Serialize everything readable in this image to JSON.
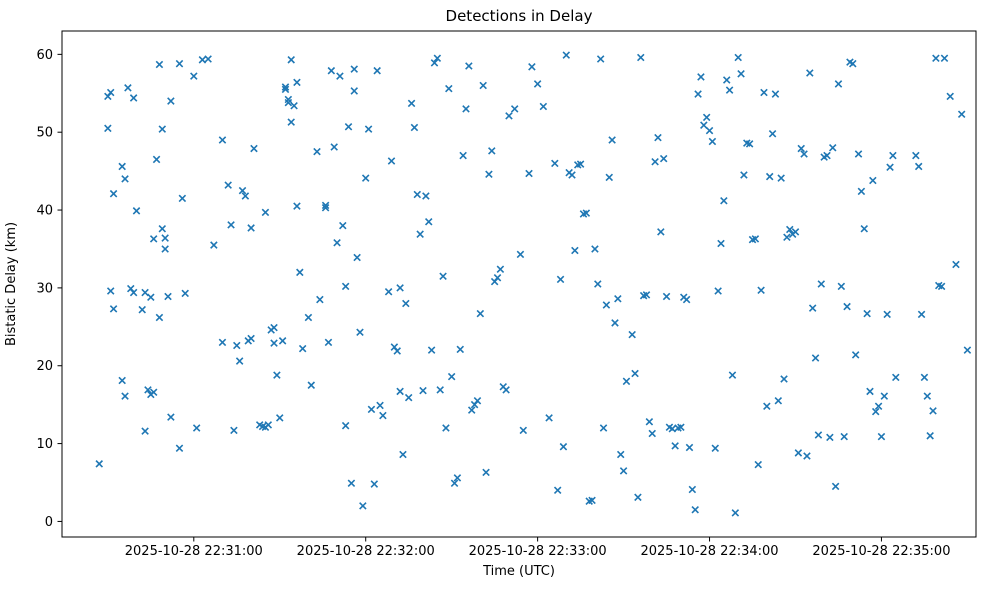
{
  "figure": {
    "title": "Detections in Delay"
  },
  "chart_data": {
    "type": "scatter",
    "title": "Detections in Delay",
    "xlabel": "Time (UTC)",
    "ylabel": "Bistatic Delay (km)",
    "marker": "x",
    "marker_color": "#1f77b4",
    "grid": false,
    "legend": "none",
    "x_unit": "seconds after 2025-10-28 22:30:00 UTC",
    "xlim": [
      14,
      333
    ],
    "ylim": [
      -2,
      63
    ],
    "x_ticks": [
      {
        "value": 60,
        "label": "2025-10-28 22:31:00"
      },
      {
        "value": 120,
        "label": "2025-10-28 22:32:00"
      },
      {
        "value": 180,
        "label": "2025-10-28 22:33:00"
      },
      {
        "value": 240,
        "label": "2025-10-28 22:34:00"
      },
      {
        "value": 300,
        "label": "2025-10-28 22:35:00"
      }
    ],
    "y_ticks": [
      0,
      10,
      20,
      30,
      40,
      50,
      60
    ],
    "points": [
      [
        27,
        7.4
      ],
      [
        30,
        50.5
      ],
      [
        30,
        54.6
      ],
      [
        31,
        55.1
      ],
      [
        32,
        42.1
      ],
      [
        31,
        29.6
      ],
      [
        32,
        27.3
      ],
      [
        35,
        18.1
      ],
      [
        36,
        16.1
      ],
      [
        35,
        45.6
      ],
      [
        36,
        44.0
      ],
      [
        37,
        55.7
      ],
      [
        39,
        54.4
      ],
      [
        38,
        29.9
      ],
      [
        39,
        29.4
      ],
      [
        40,
        39.9
      ],
      [
        42,
        27.2
      ],
      [
        43,
        29.4
      ],
      [
        43,
        11.6
      ],
      [
        44,
        16.9
      ],
      [
        45,
        16.3
      ],
      [
        46,
        16.6
      ],
      [
        45,
        28.8
      ],
      [
        46,
        36.3
      ],
      [
        48,
        26.2
      ],
      [
        47,
        46.5
      ],
      [
        48,
        58.7
      ],
      [
        49,
        50.4
      ],
      [
        49,
        37.6
      ],
      [
        50,
        36.4
      ],
      [
        50,
        35.0
      ],
      [
        51,
        28.9
      ],
      [
        52,
        13.4
      ],
      [
        52,
        54.0
      ],
      [
        55,
        58.8
      ],
      [
        55,
        9.4
      ],
      [
        57,
        29.3
      ],
      [
        56,
        41.5
      ],
      [
        60,
        57.2
      ],
      [
        61,
        12.0
      ],
      [
        63,
        59.3
      ],
      [
        65,
        59.4
      ],
      [
        67,
        35.5
      ],
      [
        70,
        49.0
      ],
      [
        70,
        23.0
      ],
      [
        72,
        43.2
      ],
      [
        73,
        38.1
      ],
      [
        74,
        11.7
      ],
      [
        75,
        22.6
      ],
      [
        76,
        20.6
      ],
      [
        77,
        42.5
      ],
      [
        78,
        41.8
      ],
      [
        79,
        23.2
      ],
      [
        80,
        23.5
      ],
      [
        80,
        37.7
      ],
      [
        81,
        47.9
      ],
      [
        83,
        12.4
      ],
      [
        84,
        12.2
      ],
      [
        85,
        39.7
      ],
      [
        85,
        12.1
      ],
      [
        86,
        12.4
      ],
      [
        87,
        24.6
      ],
      [
        88,
        24.9
      ],
      [
        88,
        22.9
      ],
      [
        89,
        18.8
      ],
      [
        90,
        13.3
      ],
      [
        91,
        23.2
      ],
      [
        92,
        55.5
      ],
      [
        92,
        55.8
      ],
      [
        93,
        53.8
      ],
      [
        93,
        54.2
      ],
      [
        94,
        51.3
      ],
      [
        94,
        59.3
      ],
      [
        95,
        53.4
      ],
      [
        96,
        56.4
      ],
      [
        96,
        40.5
      ],
      [
        97,
        32.0
      ],
      [
        98,
        22.2
      ],
      [
        100,
        26.2
      ],
      [
        101,
        17.5
      ],
      [
        103,
        47.5
      ],
      [
        104,
        28.5
      ],
      [
        106,
        40.6
      ],
      [
        106,
        40.3
      ],
      [
        107,
        23.0
      ],
      [
        108,
        57.9
      ],
      [
        109,
        48.1
      ],
      [
        110,
        35.8
      ],
      [
        111,
        57.2
      ],
      [
        112,
        38.0
      ],
      [
        113,
        12.3
      ],
      [
        113,
        30.2
      ],
      [
        114,
        50.7
      ],
      [
        115,
        4.9
      ],
      [
        116,
        58.1
      ],
      [
        116,
        55.3
      ],
      [
        117,
        33.9
      ],
      [
        118,
        24.3
      ],
      [
        119,
        2.0
      ],
      [
        120,
        44.1
      ],
      [
        121,
        50.4
      ],
      [
        122,
        14.4
      ],
      [
        123,
        4.8
      ],
      [
        124,
        57.9
      ],
      [
        125,
        14.9
      ],
      [
        126,
        13.6
      ],
      [
        128,
        29.5
      ],
      [
        129,
        46.3
      ],
      [
        130,
        22.4
      ],
      [
        131,
        21.9
      ],
      [
        132,
        30.0
      ],
      [
        132,
        16.7
      ],
      [
        133,
        8.6
      ],
      [
        134,
        28.0
      ],
      [
        135,
        15.9
      ],
      [
        136,
        53.7
      ],
      [
        137,
        50.6
      ],
      [
        138,
        42.0
      ],
      [
        139,
        36.9
      ],
      [
        140,
        16.8
      ],
      [
        141,
        41.8
      ],
      [
        142,
        38.5
      ],
      [
        143,
        22.0
      ],
      [
        144,
        58.9
      ],
      [
        145,
        59.5
      ],
      [
        146,
        16.9
      ],
      [
        147,
        31.5
      ],
      [
        148,
        12.0
      ],
      [
        149,
        55.6
      ],
      [
        150,
        18.6
      ],
      [
        151,
        4.9
      ],
      [
        152,
        5.6
      ],
      [
        153,
        22.1
      ],
      [
        154,
        47.0
      ],
      [
        155,
        53.0
      ],
      [
        156,
        58.5
      ],
      [
        157,
        14.3
      ],
      [
        158,
        15.0
      ],
      [
        159,
        15.5
      ],
      [
        160,
        26.7
      ],
      [
        161,
        56.0
      ],
      [
        162,
        6.3
      ],
      [
        163,
        44.6
      ],
      [
        164,
        47.6
      ],
      [
        165,
        30.8
      ],
      [
        166,
        31.3
      ],
      [
        167,
        32.4
      ],
      [
        168,
        17.3
      ],
      [
        169,
        16.9
      ],
      [
        170,
        52.1
      ],
      [
        172,
        53.0
      ],
      [
        174,
        34.3
      ],
      [
        175,
        11.7
      ],
      [
        177,
        44.7
      ],
      [
        178,
        58.4
      ],
      [
        180,
        56.2
      ],
      [
        182,
        53.3
      ],
      [
        184,
        13.3
      ],
      [
        186,
        46.0
      ],
      [
        187,
        4.0
      ],
      [
        188,
        31.1
      ],
      [
        189,
        9.6
      ],
      [
        190,
        59.9
      ],
      [
        191,
        44.8
      ],
      [
        192,
        44.5
      ],
      [
        193,
        34.8
      ],
      [
        194,
        45.8
      ],
      [
        195,
        45.9
      ],
      [
        196,
        39.5
      ],
      [
        197,
        39.6
      ],
      [
        198,
        2.6
      ],
      [
        199,
        2.7
      ],
      [
        200,
        35.0
      ],
      [
        201,
        30.5
      ],
      [
        202,
        59.4
      ],
      [
        203,
        12.0
      ],
      [
        204,
        27.8
      ],
      [
        205,
        44.2
      ],
      [
        206,
        49.0
      ],
      [
        207,
        25.5
      ],
      [
        208,
        28.6
      ],
      [
        209,
        8.6
      ],
      [
        210,
        6.5
      ],
      [
        211,
        18.0
      ],
      [
        213,
        24.0
      ],
      [
        214,
        19.0
      ],
      [
        215,
        3.1
      ],
      [
        216,
        59.6
      ],
      [
        217,
        29.0
      ],
      [
        218,
        29.1
      ],
      [
        219,
        12.8
      ],
      [
        220,
        11.3
      ],
      [
        221,
        46.2
      ],
      [
        222,
        49.3
      ],
      [
        223,
        37.2
      ],
      [
        224,
        46.6
      ],
      [
        225,
        28.9
      ],
      [
        226,
        12.1
      ],
      [
        227,
        11.9
      ],
      [
        228,
        9.7
      ],
      [
        229,
        12.0
      ],
      [
        230,
        12.1
      ],
      [
        231,
        28.8
      ],
      [
        232,
        28.5
      ],
      [
        233,
        9.5
      ],
      [
        234,
        4.1
      ],
      [
        235,
        1.5
      ],
      [
        236,
        54.9
      ],
      [
        237,
        57.1
      ],
      [
        238,
        50.9
      ],
      [
        239,
        51.9
      ],
      [
        240,
        50.2
      ],
      [
        241,
        48.8
      ],
      [
        242,
        9.4
      ],
      [
        243,
        29.6
      ],
      [
        244,
        35.7
      ],
      [
        245,
        41.2
      ],
      [
        246,
        56.7
      ],
      [
        247,
        55.4
      ],
      [
        248,
        18.8
      ],
      [
        249,
        1.1
      ],
      [
        250,
        59.6
      ],
      [
        251,
        57.5
      ],
      [
        252,
        44.5
      ],
      [
        253,
        48.6
      ],
      [
        254,
        48.5
      ],
      [
        255,
        36.2
      ],
      [
        256,
        36.3
      ],
      [
        257,
        7.3
      ],
      [
        258,
        29.7
      ],
      [
        259,
        55.1
      ],
      [
        260,
        14.8
      ],
      [
        261,
        44.3
      ],
      [
        262,
        49.8
      ],
      [
        263,
        54.9
      ],
      [
        264,
        15.5
      ],
      [
        265,
        44.1
      ],
      [
        266,
        18.3
      ],
      [
        267,
        36.5
      ],
      [
        268,
        37.5
      ],
      [
        269,
        36.9
      ],
      [
        270,
        37.2
      ],
      [
        271,
        8.8
      ],
      [
        272,
        47.9
      ],
      [
        273,
        47.2
      ],
      [
        274,
        8.4
      ],
      [
        275,
        57.6
      ],
      [
        276,
        27.4
      ],
      [
        277,
        21.0
      ],
      [
        278,
        11.1
      ],
      [
        279,
        30.5
      ],
      [
        280,
        46.8
      ],
      [
        281,
        47.0
      ],
      [
        282,
        10.8
      ],
      [
        283,
        48.0
      ],
      [
        284,
        4.5
      ],
      [
        285,
        56.2
      ],
      [
        286,
        30.2
      ],
      [
        287,
        10.9
      ],
      [
        288,
        27.6
      ],
      [
        289,
        59.0
      ],
      [
        290,
        58.8
      ],
      [
        291,
        21.4
      ],
      [
        292,
        47.2
      ],
      [
        293,
        42.4
      ],
      [
        294,
        37.6
      ],
      [
        295,
        26.7
      ],
      [
        296,
        16.7
      ],
      [
        297,
        43.8
      ],
      [
        298,
        14.1
      ],
      [
        299,
        14.8
      ],
      [
        300,
        10.9
      ],
      [
        301,
        16.1
      ],
      [
        302,
        26.6
      ],
      [
        303,
        45.5
      ],
      [
        304,
        47.0
      ],
      [
        305,
        18.5
      ],
      [
        312,
        47.0
      ],
      [
        313,
        45.6
      ],
      [
        314,
        26.6
      ],
      [
        315,
        18.5
      ],
      [
        316,
        16.1
      ],
      [
        317,
        11.0
      ],
      [
        318,
        14.2
      ],
      [
        319,
        59.5
      ],
      [
        320,
        30.3
      ],
      [
        321,
        30.2
      ],
      [
        322,
        59.5
      ],
      [
        324,
        54.6
      ],
      [
        326,
        33.0
      ],
      [
        328,
        52.3
      ],
      [
        330,
        22.0
      ]
    ]
  }
}
